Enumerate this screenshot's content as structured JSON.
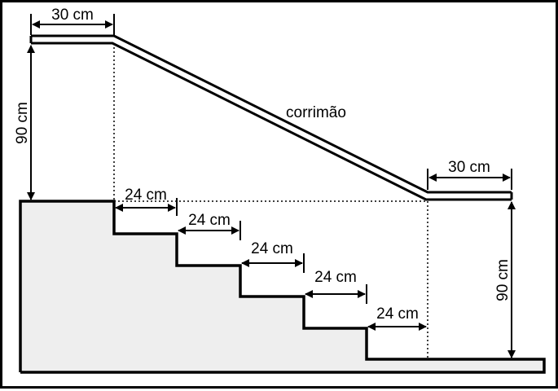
{
  "labels": {
    "top_left_width": "30 cm",
    "left_height": "90 cm",
    "handrail": "corrimão",
    "top_right_width": "30 cm",
    "right_height": "90 cm",
    "tread_1": "24 cm",
    "tread_2": "24 cm",
    "tread_3": "24 cm",
    "tread_4": "24 cm",
    "tread_5": "24 cm"
  },
  "colors": {
    "stroke": "#000000",
    "fill_floor": "#eeeeee",
    "background": "#ffffff"
  }
}
